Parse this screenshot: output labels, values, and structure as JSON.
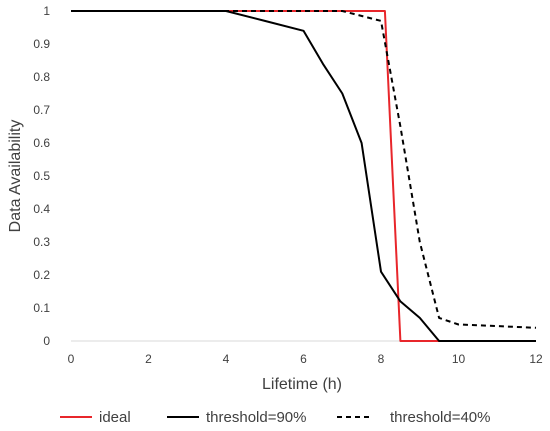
{
  "chart_data": {
    "type": "line",
    "title": "",
    "xlabel": "Lifetime (h)",
    "ylabel": "Data Availability",
    "xlim": [
      0,
      12
    ],
    "ylim": [
      0,
      1
    ],
    "x_ticks": [
      0,
      2,
      4,
      6,
      8,
      10,
      12
    ],
    "y_ticks": [
      0,
      0.1,
      0.2,
      0.3,
      0.4,
      0.5,
      0.6,
      0.7,
      0.8,
      0.9,
      1
    ],
    "y_tick_labels": [
      "0",
      "0.1",
      "0.2",
      "0.3",
      "0.4",
      "0.5",
      "0.6",
      "0.7",
      "0.8",
      "0.9",
      "1"
    ],
    "grid": false,
    "legend_position": "bottom",
    "series": [
      {
        "name": "ideal",
        "color": "#e8262b",
        "style": "solid",
        "points": [
          [
            0,
            1
          ],
          [
            8.1,
            1
          ],
          [
            8.5,
            0
          ],
          [
            12,
            0
          ]
        ]
      },
      {
        "name": "threshold=90%",
        "color": "#000000",
        "style": "solid",
        "points": [
          [
            0,
            1
          ],
          [
            4,
            1
          ],
          [
            5,
            0.97
          ],
          [
            6,
            0.94
          ],
          [
            6.5,
            0.84
          ],
          [
            7,
            0.75
          ],
          [
            7.5,
            0.6
          ],
          [
            8,
            0.21
          ],
          [
            8.5,
            0.12
          ],
          [
            9,
            0.07
          ],
          [
            9.5,
            0
          ],
          [
            12,
            0
          ]
        ]
      },
      {
        "name": "threshold=40%",
        "color": "#000000",
        "style": "dashed",
        "points": [
          [
            0,
            1
          ],
          [
            7,
            1
          ],
          [
            8,
            0.97
          ],
          [
            8.5,
            0.65
          ],
          [
            9,
            0.3
          ],
          [
            9.5,
            0.07
          ],
          [
            10,
            0.05
          ],
          [
            11,
            0.045
          ],
          [
            12,
            0.04
          ]
        ]
      }
    ]
  }
}
